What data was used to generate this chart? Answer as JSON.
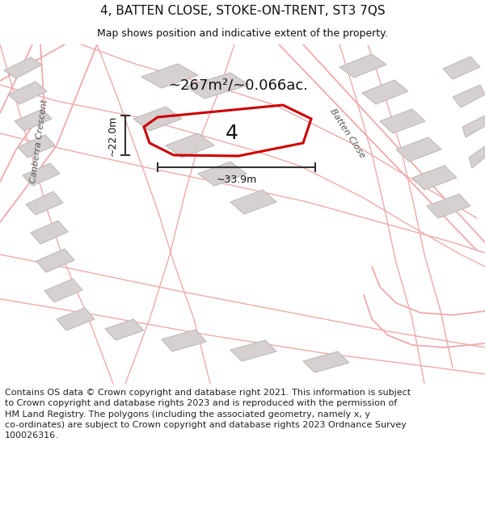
{
  "title": "4, BATTEN CLOSE, STOKE-ON-TRENT, ST3 7QS",
  "subtitle": "Map shows position and indicative extent of the property.",
  "footer_line1": "Contains OS data © Crown copyright and database right 2021. This information is subject",
  "footer_line2": "to Crown copyright and database rights 2023 and is reproduced with the permission of",
  "footer_line3": "HM Land Registry. The polygons (including the associated geometry, namely x, y",
  "footer_line4": "co-ordinates) are subject to Crown copyright and database rights 2023 Ordnance Survey",
  "footer_line5": "100026316.",
  "area_label": "~267m²/~0.066ac.",
  "width_label": "~33.9m",
  "height_label": "~22.0m",
  "plot_number": "4",
  "map_bg": "#f7f4f4",
  "road_color": "#ffffff",
  "plot_edge_color": "#cc0000",
  "building_face": "#d6d0d0",
  "building_edge": "#c0baba",
  "street_line_color": "#f0aaaa",
  "dim_color": "#333333",
  "label_color": "#555555",
  "title_fontsize": 11,
  "subtitle_fontsize": 9,
  "area_fontsize": 13,
  "number_fontsize": 18,
  "dim_fontsize": 9,
  "street_label_fontsize": 8,
  "footer_fontsize": 8
}
